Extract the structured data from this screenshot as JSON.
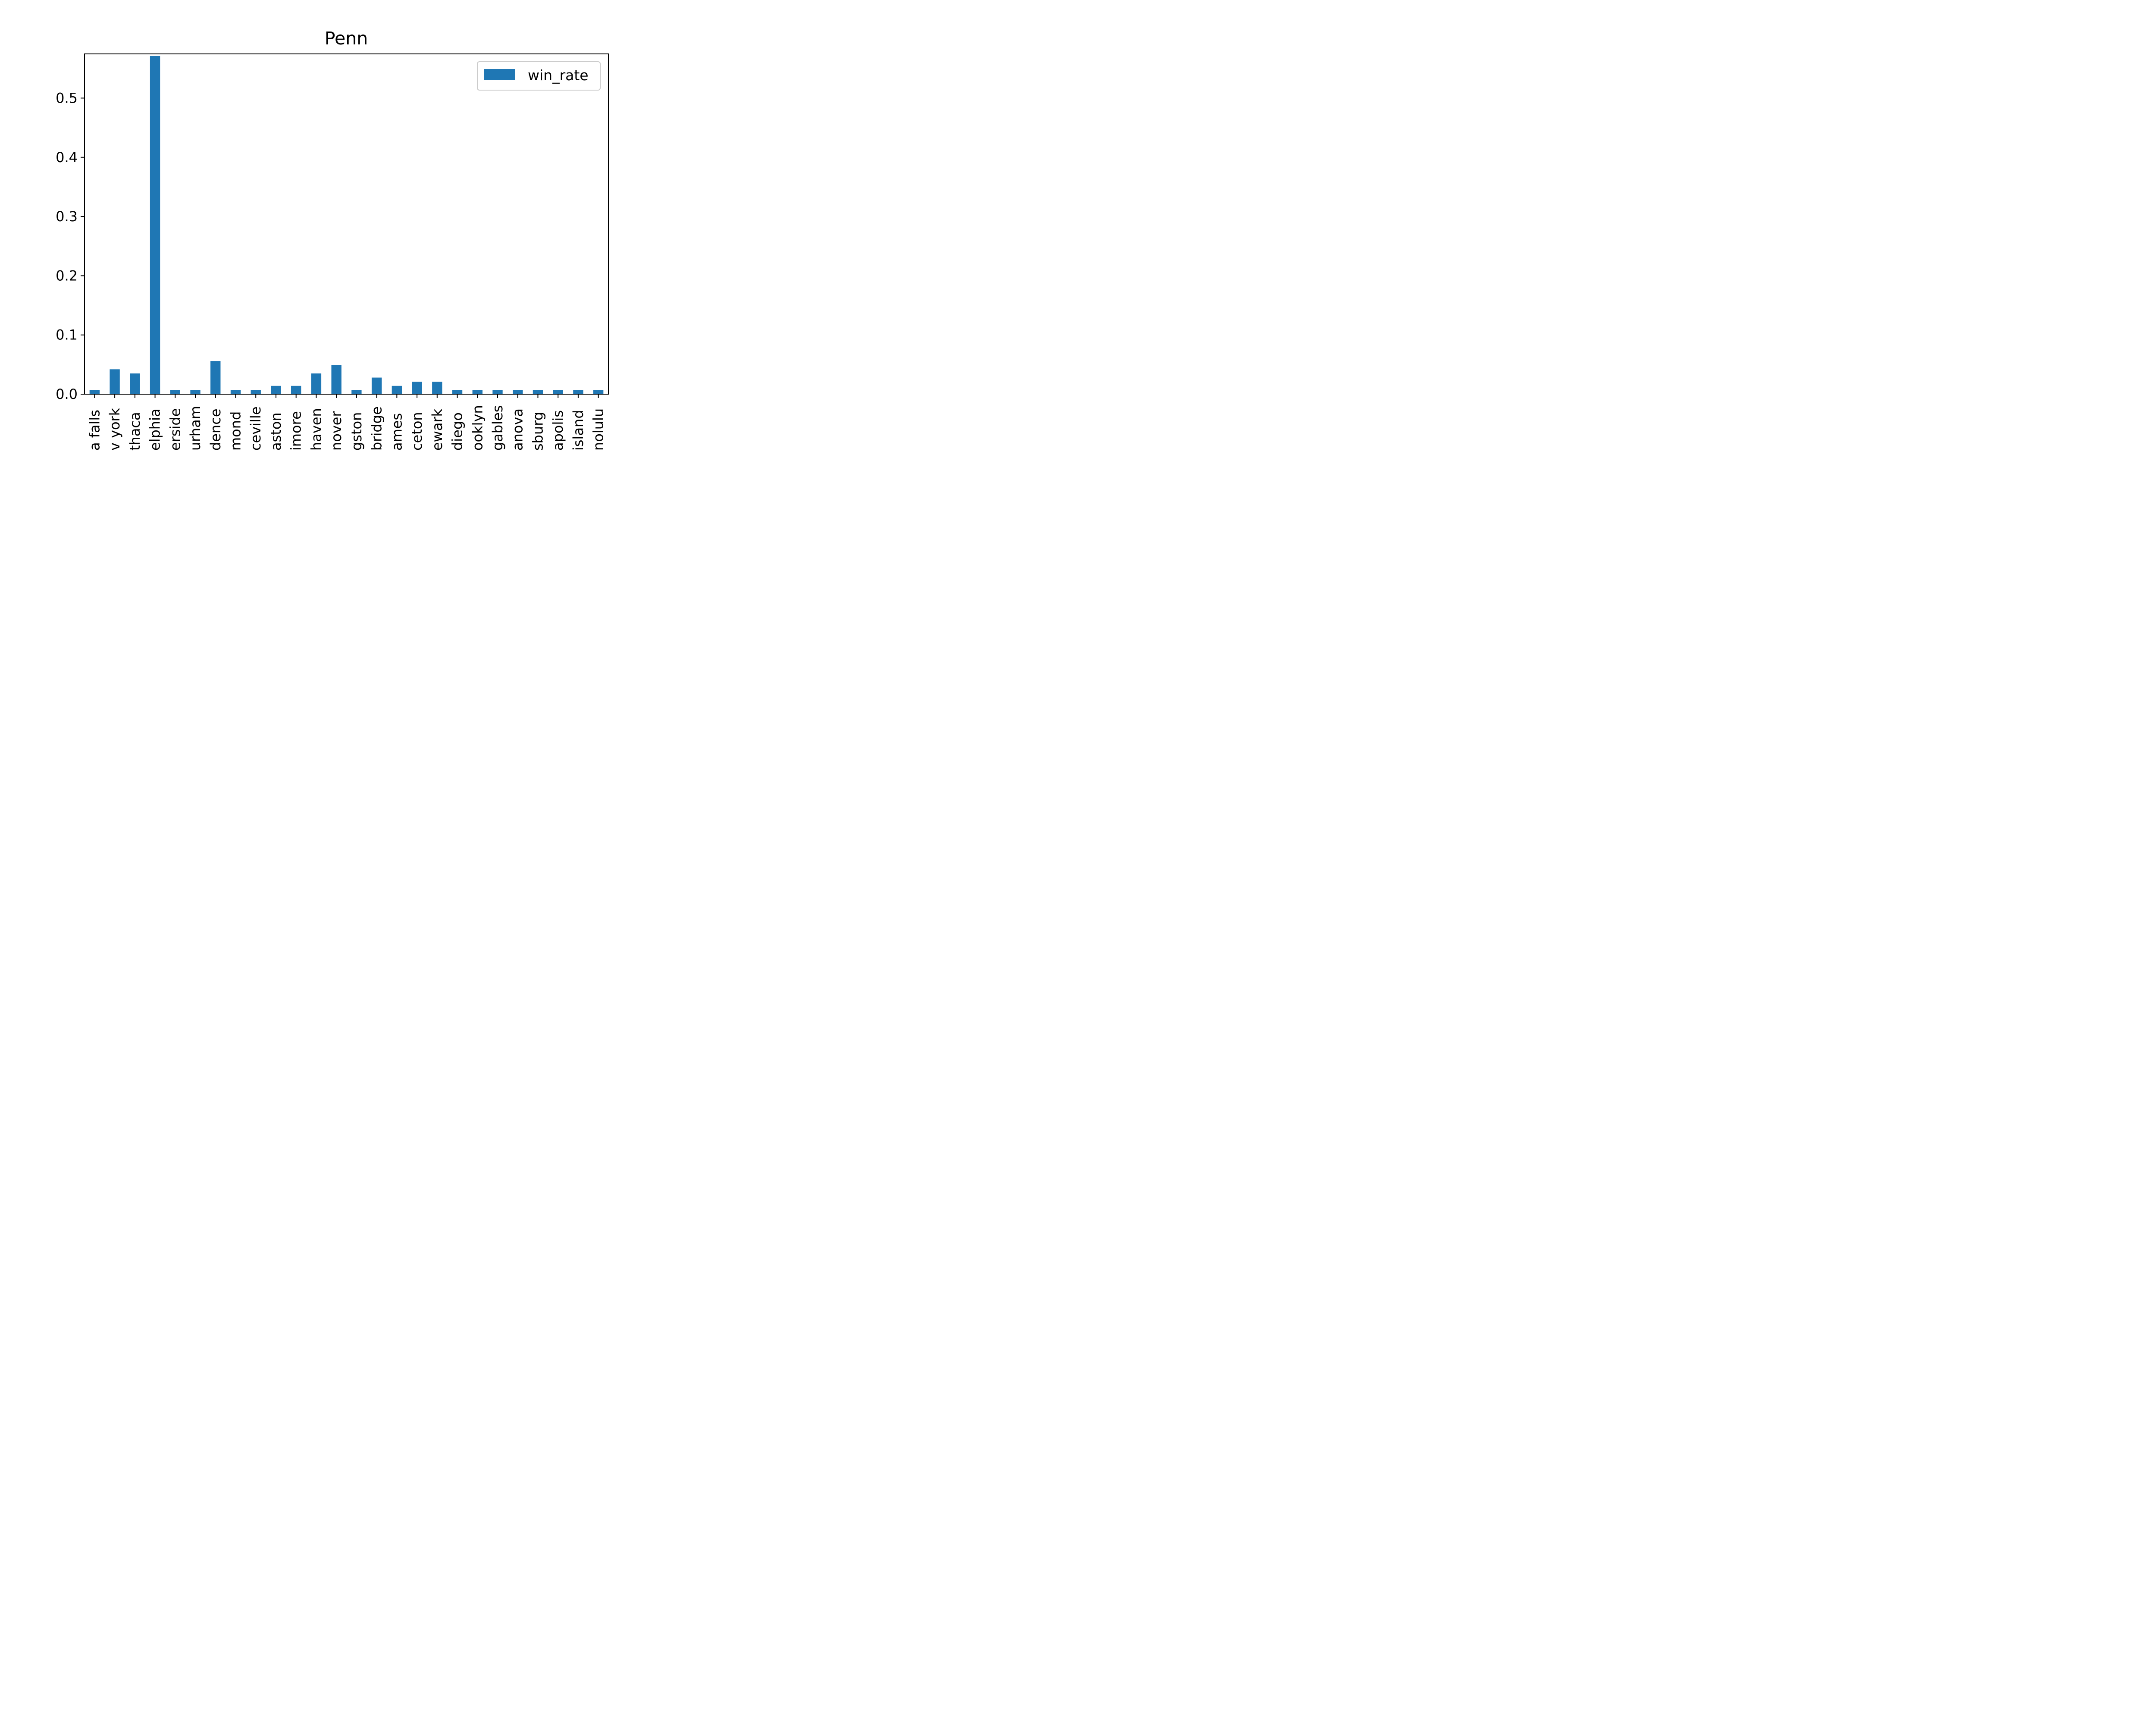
{
  "chart_data": {
    "type": "bar",
    "title": "Penn",
    "xlabel": "",
    "ylabel": "",
    "ylim": [
      0,
      0.5746
    ],
    "yticks": [
      0.0,
      0.1,
      0.2,
      0.3,
      0.4,
      0.5
    ],
    "ytick_labels": [
      "0.0",
      "0.1",
      "0.2",
      "0.3",
      "0.4",
      "0.5"
    ],
    "categories": [
      "niagara falls",
      "new york",
      "ithaca",
      "philadelphia",
      "riverside",
      "durham",
      "providence",
      "richmond",
      "lawrenceville",
      "easton",
      "baltimore",
      "new haven",
      "hanover",
      "kingston",
      "cambridge",
      "ames",
      "princeton",
      "newark",
      "san diego",
      "brooklyn",
      "coral gables",
      "villanova",
      "gettysburg",
      "annapolis",
      "rhode island",
      "honolulu"
    ],
    "tick_labels_visible": [
      "a falls",
      "v york",
      "thaca",
      "elphia",
      "erside",
      "urham",
      "dence",
      "mond",
      "ceville",
      "aston",
      "imore",
      "haven",
      "nover",
      "gston",
      "bridge",
      "ames",
      "ceton",
      "ewark",
      "diego",
      "ooklyn",
      "gables",
      "anova",
      "sburg",
      "apolis",
      "island",
      "nolulu"
    ],
    "series": [
      {
        "name": "win_rate",
        "color": "#1f77b4",
        "values": [
          0.007,
          0.042,
          0.035,
          0.571,
          0.007,
          0.007,
          0.056,
          0.007,
          0.007,
          0.014,
          0.014,
          0.035,
          0.049,
          0.007,
          0.028,
          0.014,
          0.021,
          0.021,
          0.007,
          0.007,
          0.007,
          0.007,
          0.007,
          0.007,
          0.007,
          0.007
        ]
      }
    ],
    "legend": {
      "entries": [
        "win_rate"
      ],
      "location": "upper right"
    },
    "grid": false,
    "colors": {
      "bar": "#1f77b4",
      "axes": "#000000",
      "legend_border": "#cccccc"
    }
  }
}
